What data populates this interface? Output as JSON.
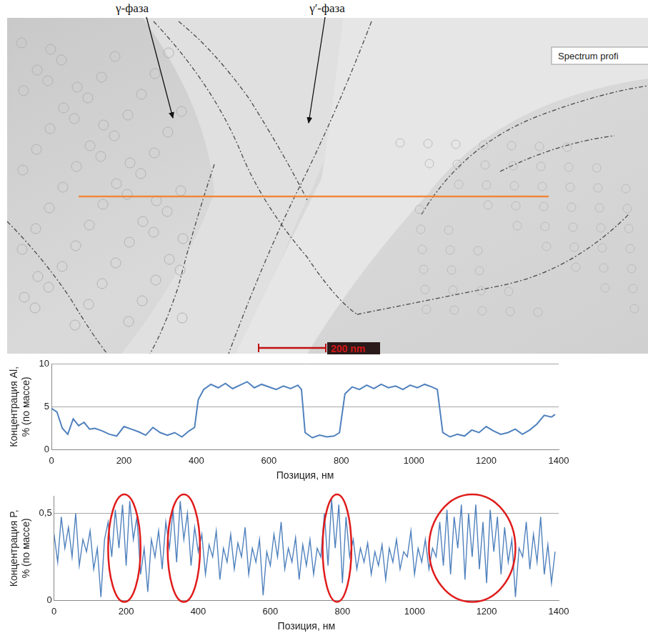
{
  "micrograph": {
    "labels": [
      "γ-фаза",
      "γ′-фаза"
    ],
    "legend_box": "Spectrum profi",
    "scale_bar": "200 nm",
    "profile_line_color": "#f0883c"
  },
  "chart_data": [
    {
      "type": "line",
      "x_label": "Позиция, нм",
      "y_label": "Концентрация Al, % (по массе)",
      "color": "#4f81bd",
      "x": [
        0,
        15,
        30,
        45,
        60,
        75,
        90,
        105,
        120,
        140,
        160,
        180,
        200,
        220,
        240,
        260,
        280,
        300,
        320,
        340,
        360,
        380,
        395,
        405,
        420,
        440,
        460,
        480,
        500,
        520,
        540,
        560,
        580,
        600,
        620,
        640,
        660,
        680,
        690,
        700,
        720,
        740,
        760,
        780,
        795,
        810,
        830,
        850,
        870,
        890,
        910,
        930,
        950,
        970,
        990,
        1010,
        1030,
        1050,
        1065,
        1080,
        1100,
        1120,
        1140,
        1160,
        1180,
        1200,
        1220,
        1240,
        1260,
        1280,
        1300,
        1320,
        1340,
        1360,
        1380,
        1390
      ],
      "values": [
        4.8,
        4.4,
        2.5,
        1.8,
        3.6,
        2.8,
        3.2,
        2.4,
        2.5,
        2.2,
        1.8,
        1.6,
        2.7,
        2.4,
        2.1,
        1.7,
        2.6,
        2.0,
        1.7,
        2.0,
        1.5,
        2.2,
        2.6,
        5.8,
        7.0,
        7.6,
        7.2,
        7.7,
        7.1,
        7.5,
        7.9,
        7.2,
        7.6,
        7.3,
        7.0,
        7.4,
        7.1,
        7.5,
        7.0,
        2.0,
        1.4,
        1.7,
        1.5,
        1.6,
        2.0,
        6.5,
        7.3,
        7.0,
        7.5,
        7.1,
        7.6,
        7.2,
        7.4,
        7.0,
        7.5,
        7.2,
        7.6,
        7.3,
        7.0,
        2.0,
        1.5,
        1.8,
        1.6,
        2.3,
        2.0,
        2.7,
        2.2,
        1.8,
        2.0,
        2.4,
        1.8,
        2.3,
        3.0,
        4.0,
        3.8,
        4.1
      ],
      "xlim": [
        0,
        1400
      ],
      "xticks": [
        0,
        200,
        400,
        600,
        800,
        1000,
        1200,
        1400
      ],
      "ylim": [
        0,
        10
      ],
      "yticks": [
        0,
        5,
        10
      ],
      "grid": "y"
    },
    {
      "type": "line",
      "x_label": "Позиция, нм",
      "y_label": "Концентрация P, % (по массе)",
      "color": "#4f81bd",
      "x": [
        0,
        10,
        20,
        30,
        40,
        50,
        60,
        70,
        80,
        90,
        100,
        110,
        120,
        130,
        140,
        150,
        160,
        170,
        180,
        190,
        200,
        210,
        220,
        230,
        240,
        250,
        260,
        270,
        280,
        290,
        300,
        310,
        320,
        330,
        340,
        350,
        360,
        370,
        380,
        390,
        400,
        410,
        420,
        430,
        440,
        450,
        460,
        470,
        480,
        490,
        500,
        510,
        520,
        530,
        540,
        550,
        560,
        570,
        580,
        590,
        600,
        610,
        620,
        630,
        640,
        650,
        660,
        670,
        680,
        690,
        700,
        710,
        720,
        730,
        740,
        750,
        760,
        770,
        780,
        790,
        800,
        810,
        820,
        830,
        840,
        850,
        860,
        870,
        880,
        890,
        900,
        910,
        920,
        930,
        940,
        950,
        960,
        970,
        980,
        990,
        1000,
        1010,
        1020,
        1030,
        1040,
        1050,
        1060,
        1070,
        1080,
        1090,
        1100,
        1110,
        1120,
        1130,
        1140,
        1150,
        1160,
        1170,
        1180,
        1190,
        1200,
        1210,
        1220,
        1230,
        1240,
        1250,
        1260,
        1270,
        1280,
        1290,
        1300,
        1310,
        1320,
        1330,
        1340,
        1350,
        1360,
        1370,
        1380,
        1390
      ],
      "values": [
        0.38,
        0.22,
        0.48,
        0.3,
        0.42,
        0.25,
        0.5,
        0.2,
        0.35,
        0.28,
        0.4,
        0.18,
        0.3,
        0.02,
        0.35,
        0.45,
        0.25,
        0.52,
        0.3,
        0.55,
        0.2,
        0.57,
        0.35,
        0.48,
        0.15,
        0.3,
        0.05,
        0.35,
        0.25,
        0.4,
        0.18,
        0.45,
        0.3,
        0.52,
        0.22,
        0.57,
        0.35,
        0.5,
        0.2,
        0.42,
        0.28,
        0.38,
        0.15,
        0.32,
        0.25,
        0.4,
        0.12,
        0.3,
        0.22,
        0.38,
        0.18,
        0.33,
        0.25,
        0.42,
        0.15,
        0.3,
        0.22,
        0.35,
        0.03,
        0.28,
        0.2,
        0.38,
        0.25,
        0.45,
        0.18,
        0.3,
        0.22,
        0.36,
        0.12,
        0.32,
        0.2,
        0.35,
        0.15,
        0.3,
        0.25,
        0.5,
        0.2,
        0.58,
        0.3,
        0.55,
        0.1,
        0.48,
        0.25,
        0.35,
        0.18,
        0.3,
        0.22,
        0.33,
        0.15,
        0.28,
        0.2,
        0.32,
        0.12,
        0.3,
        0.22,
        0.35,
        0.18,
        0.28,
        0.25,
        0.4,
        0.15,
        0.3,
        0.22,
        0.35,
        0.18,
        0.3,
        0.25,
        0.45,
        0.2,
        0.52,
        0.15,
        0.48,
        0.3,
        0.55,
        0.12,
        0.5,
        0.25,
        0.55,
        0.18,
        0.45,
        0.1,
        0.52,
        0.28,
        0.48,
        0.15,
        0.42,
        0.22,
        0.35,
        0.02,
        0.3,
        0.25,
        0.45,
        0.18,
        0.38,
        0.22,
        0.48,
        0.15,
        0.32,
        0.1,
        0.28
      ],
      "xlim": [
        0,
        1400
      ],
      "xticks": [
        0,
        200,
        400,
        600,
        800,
        1000,
        1200,
        1400
      ],
      "ylim": [
        0,
        0.6
      ],
      "yticks": [
        0,
        {
          "value": 0.5,
          "label": "0,5"
        }
      ],
      "grid": "y",
      "highlights": [
        [
          150,
          240
        ],
        [
          315,
          405
        ],
        [
          745,
          825
        ],
        [
          1040,
          1280
        ]
      ],
      "highlight_color": "#e01b1b"
    }
  ]
}
